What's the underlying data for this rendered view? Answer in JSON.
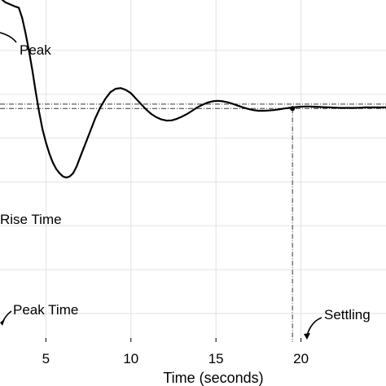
{
  "chart_data": {
    "type": "line",
    "title": "",
    "xlabel": "Time (seconds)",
    "ylabel": "",
    "xlim": [
      2.3,
      25.0
    ],
    "ylim": [
      -0.13,
      1.43
    ],
    "grid": true,
    "x_ticks": [
      5,
      10,
      15,
      20
    ],
    "x_tick_labels": [
      "5",
      "10",
      "15",
      "20"
    ],
    "series": [
      {
        "name": "",
        "x": [
          2.3,
          2.6,
          2.9,
          3.2,
          3.4,
          3.6,
          3.8,
          4.0,
          4.2,
          4.4,
          4.6,
          4.8,
          5.0,
          5.2,
          5.4,
          5.6,
          5.8,
          6.0,
          6.2,
          6.4,
          6.6,
          6.8,
          7.0,
          7.3,
          7.6,
          7.9,
          8.2,
          8.5,
          8.8,
          9.1,
          9.4,
          9.7,
          10.0,
          10.3,
          10.6,
          10.9,
          11.2,
          11.5,
          11.8,
          12.1,
          12.4,
          12.7,
          13.0,
          13.3,
          13.6,
          13.9,
          14.2,
          14.5,
          14.8,
          15.1,
          15.4,
          15.7,
          16.0,
          16.3,
          16.6,
          16.9,
          17.2,
          17.5,
          17.8,
          18.1,
          18.4,
          18.7,
          19.0,
          19.3,
          19.6,
          19.9,
          20.2,
          20.5,
          20.8,
          21.1,
          21.4,
          21.7,
          22.0,
          22.3,
          22.6,
          22.9,
          23.2,
          23.5,
          23.8,
          24.1,
          24.4,
          24.7,
          25.0
        ],
        "y": [
          1.44,
          1.42,
          1.41,
          1.4,
          1.395,
          1.35,
          1.28,
          1.2,
          1.11,
          1.01,
          0.92,
          0.84,
          0.78,
          0.73,
          0.69,
          0.66,
          0.64,
          0.625,
          0.62,
          0.625,
          0.64,
          0.67,
          0.71,
          0.77,
          0.83,
          0.89,
          0.94,
          0.98,
          1.01,
          1.025,
          1.028,
          1.02,
          1.005,
          0.98,
          0.955,
          0.93,
          0.91,
          0.895,
          0.885,
          0.88,
          0.881,
          0.888,
          0.898,
          0.91,
          0.925,
          0.94,
          0.952,
          0.962,
          0.968,
          0.97,
          0.968,
          0.963,
          0.956,
          0.948,
          0.94,
          0.933,
          0.928,
          0.925,
          0.925,
          0.926,
          0.928,
          0.931,
          0.935,
          0.938,
          0.941,
          0.943,
          0.944,
          0.944,
          0.943,
          0.942,
          0.941,
          0.94,
          0.939,
          0.938,
          0.938,
          0.938,
          0.938,
          0.939,
          0.94,
          0.94,
          0.94,
          0.94,
          0.94
        ]
      }
    ],
    "reference_lines": {
      "upper": 0.955,
      "lower": 0.935
    },
    "settling_point": {
      "x": 19.5,
      "y": 0.935
    },
    "annotations": [
      {
        "text": "Peak",
        "target_x": 2.3,
        "target_y": 1.44
      },
      {
        "text": "Rise Time"
      },
      {
        "text": "Peak Time",
        "target_x": 2.3,
        "target_y": -0.13
      },
      {
        "text": "Settling",
        "target_x": 19.5,
        "target_y": -0.13
      }
    ]
  }
}
